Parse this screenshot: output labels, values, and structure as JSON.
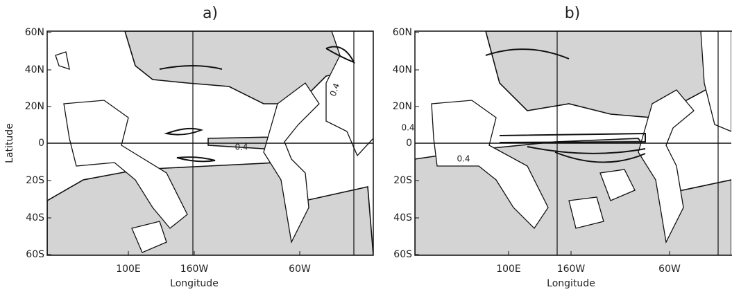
{
  "y_axis_label": "Latitude",
  "panels": [
    {
      "title": "a)",
      "y_tick_labels": [
        "60N",
        "40N",
        "20N",
        "0",
        "20S",
        "40S",
        "60S"
      ],
      "x_tick_labels": [
        "100E",
        "160W",
        "60W"
      ],
      "x_axis_label": "Longitude",
      "contour_labels": [
        "0.4",
        "0.4"
      ]
    },
    {
      "title": "b)",
      "y_tick_labels": [
        "60N",
        "40N",
        "20N",
        "0",
        "20S",
        "40S",
        "60S"
      ],
      "x_tick_labels": [
        "100E",
        "160W",
        "60W"
      ],
      "x_axis_label": "Longitude",
      "contour_labels": [
        "0.4",
        "0.4"
      ]
    }
  ]
}
